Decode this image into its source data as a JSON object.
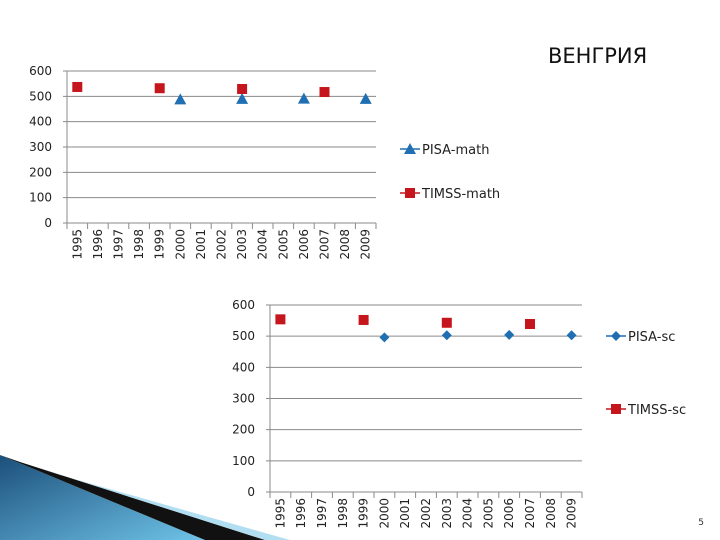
{
  "slide": {
    "title": "ВЕНГРИЯ",
    "page_number": "5"
  },
  "colors": {
    "pisa": "#1f6fb2",
    "timss": "#c4161c",
    "grid": "#8a8a8a"
  },
  "chart_data": [
    {
      "type": "scatter",
      "title": "",
      "xlabel": "",
      "ylabel": "",
      "x": [
        "1995",
        "1996",
        "1997",
        "1998",
        "1999",
        "2000",
        "2001",
        "2002",
        "2003",
        "2004",
        "2005",
        "2006",
        "2007",
        "2008",
        "2009"
      ],
      "yticks": [
        "0",
        "100",
        "200",
        "300",
        "400",
        "500",
        "600"
      ],
      "ylim": [
        0,
        600
      ],
      "legend_position": "right",
      "series": [
        {
          "name": "PISA-math",
          "marker": "triangle",
          "points": [
            [
              2000,
              488
            ],
            [
              2003,
              490
            ],
            [
              2006,
              491
            ],
            [
              2009,
              490
            ]
          ]
        },
        {
          "name": "TIMSS-math",
          "marker": "square",
          "points": [
            [
              1995,
              537
            ],
            [
              1999,
              532
            ],
            [
              2003,
              529
            ],
            [
              2007,
              517
            ]
          ]
        }
      ]
    },
    {
      "type": "scatter",
      "title": "",
      "xlabel": "",
      "ylabel": "",
      "x": [
        "1995",
        "1996",
        "1997",
        "1998",
        "1999",
        "2000",
        "2001",
        "2002",
        "2003",
        "2004",
        "2005",
        "2006",
        "2007",
        "2008",
        "2009"
      ],
      "yticks": [
        "0",
        "100",
        "200",
        "300",
        "400",
        "500",
        "600"
      ],
      "ylim": [
        0,
        600
      ],
      "legend_position": "right",
      "series": [
        {
          "name": "PISA-sc",
          "marker": "diamond",
          "points": [
            [
              2000,
              496
            ],
            [
              2003,
              503
            ],
            [
              2006,
              504
            ],
            [
              2009,
              503
            ]
          ]
        },
        {
          "name": "TIMSS-sc",
          "marker": "square",
          "points": [
            [
              1995,
              554
            ],
            [
              1999,
              552
            ],
            [
              2003,
              543
            ],
            [
              2007,
              539
            ]
          ]
        }
      ]
    }
  ]
}
